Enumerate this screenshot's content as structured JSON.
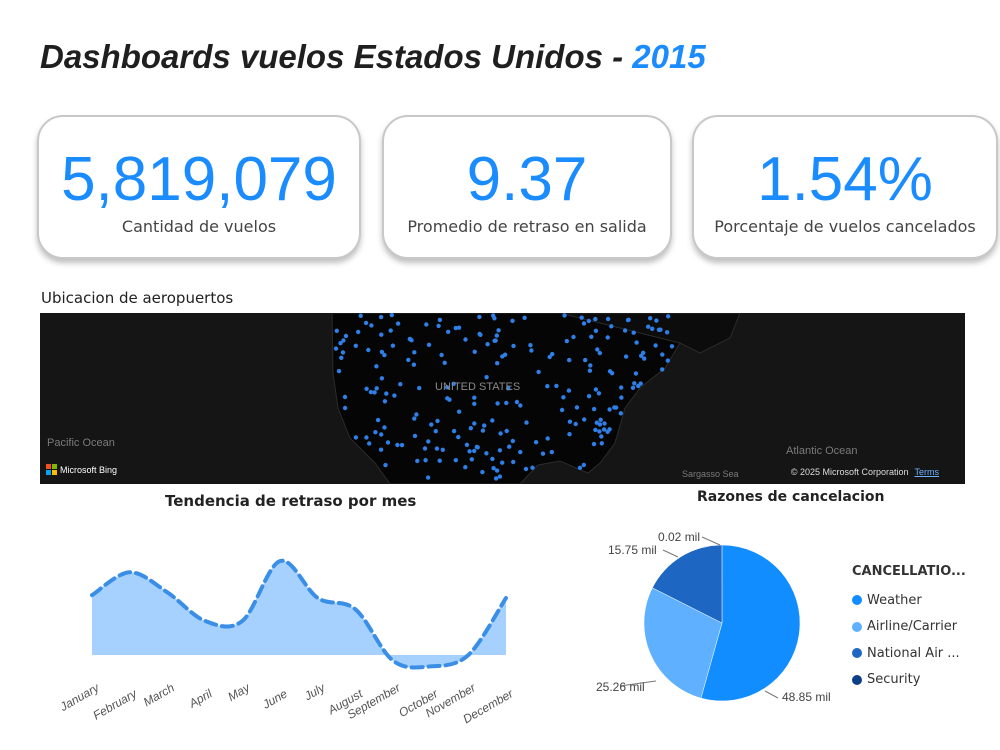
{
  "header": {
    "title": "Dashboards vuelos Estados Unidos -",
    "year": "2015"
  },
  "kpis": [
    {
      "value": "5,819,079",
      "label": "Cantidad de vuelos"
    },
    {
      "value": "9.37",
      "label": "Promedio de retraso en salida"
    },
    {
      "value": "1.54%",
      "label": "Porcentaje de vuelos cancelados"
    }
  ],
  "map": {
    "title": "Ubicacion de aeropuertos",
    "country_label": "UNITED STATES",
    "pacific": "Pacific Ocean",
    "atlantic": "Atlantic Ocean",
    "sargasso": "Sargasso Sea",
    "provider": "Microsoft Bing",
    "copyright": "© 2025 Microsoft Corporation",
    "terms": "Terms"
  },
  "colors": {
    "accent": "#1a8cff",
    "area_fill": "#a6d1ff",
    "line": "#3a8ee6"
  },
  "chart_data": [
    {
      "type": "area",
      "title": "Tendencia de retraso por mes",
      "categories": [
        "January",
        "February",
        "March",
        "April",
        "May",
        "June",
        "July",
        "August",
        "September",
        "October",
        "November",
        "December"
      ],
      "values": [
        10.5,
        14.5,
        11,
        6,
        6,
        16.5,
        10,
        8,
        -1,
        -2,
        0,
        10
      ]
    },
    {
      "type": "pie",
      "title": "Razones de cancelacion",
      "legend_title": "CANCELLATIO...",
      "slices": [
        {
          "name": "Weather",
          "label": "48.85 mil",
          "value": 48.85,
          "color": "#118dff"
        },
        {
          "name": "Airline/Carrier",
          "label": "25.26 mil",
          "value": 25.26,
          "color": "#5fb0ff"
        },
        {
          "name": "National Air ...",
          "label": "15.75 mil",
          "value": 15.75,
          "color": "#1d66c2"
        },
        {
          "name": "Security",
          "label": "0.02 mil",
          "value": 0.02,
          "color": "#0d3f86"
        }
      ]
    }
  ]
}
